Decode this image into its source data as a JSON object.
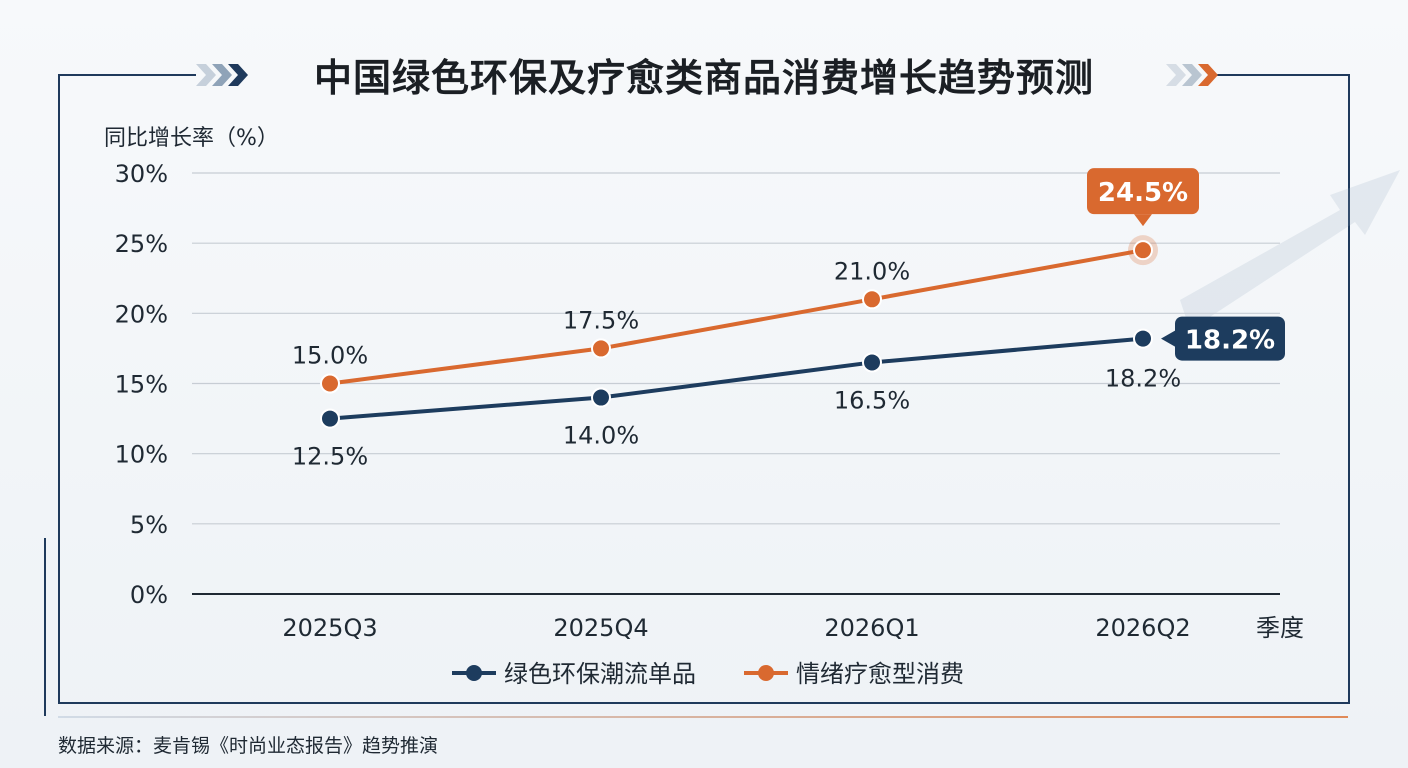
{
  "title": "中国绿色环保及疗愈类商品消费增长趋势预测",
  "source": "数据来源：麦肯锡《时尚业态报告》趋势推演",
  "colors": {
    "green_series": "#1d3c5e",
    "healing_series": "#d9692f",
    "grid": "#c7cdd4",
    "frame": "#1f3a5c"
  },
  "chart_data": {
    "type": "line",
    "ylabel": "同比增长率（%）",
    "xlabel": "季度",
    "categories": [
      "2025Q3",
      "2025Q4",
      "2026Q1",
      "2026Q2"
    ],
    "ylim": [
      0,
      30
    ],
    "yticks": [
      "0%",
      "5%",
      "10%",
      "15%",
      "20%",
      "25%",
      "30%"
    ],
    "ytick_values": [
      0,
      5,
      10,
      15,
      20,
      25,
      30
    ],
    "grid": true,
    "legend_position": "bottom",
    "series": [
      {
        "name": "绿色环保潮流单品",
        "color": "#1d3c5e",
        "values": [
          12.5,
          14.0,
          16.5,
          18.2
        ],
        "labels": [
          "12.5%",
          "14.0%",
          "16.5%",
          "18.2%"
        ],
        "callout": "18.2%"
      },
      {
        "name": "情绪疗愈型消费",
        "color": "#d9692f",
        "values": [
          15.0,
          17.5,
          21.0,
          24.5
        ],
        "labels": [
          "15.0%",
          "17.5%",
          "21.0%",
          "24.5%"
        ],
        "callout": "24.5%"
      }
    ]
  }
}
